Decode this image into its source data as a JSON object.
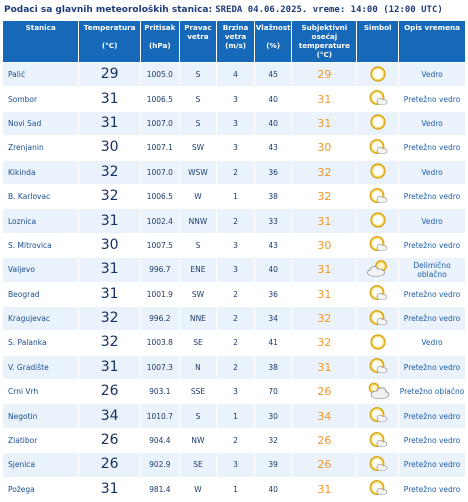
{
  "header": {
    "title_prefix": "Podaci sa glavnih meteoroloških stanica:",
    "title_mono": "SREDA 04.06.2025.  vreme: 14:00 (12:00 UTC)"
  },
  "columns": {
    "station": "Stanica",
    "temperature": "Temperatura",
    "temperature_unit": "(°C)",
    "pressure": "Pritisak",
    "pressure_unit": "(hPa)",
    "wind_dir": "Pravac vetra",
    "wind_speed": "Brzina vetra",
    "wind_speed_unit": "(m/s)",
    "humidity": "Vlažnost",
    "humidity_unit": "(%)",
    "feels_like": "Subjektivni osećaj temperature",
    "feels_like_unit": "(°C)",
    "symbol": "Simbol",
    "description": "Opis vremena"
  },
  "rows": [
    {
      "station": "Palić",
      "temp": "29",
      "pressure": "1005.0",
      "dir": "S",
      "speed": "4",
      "humidity": "45",
      "feel": "29",
      "desc": "Vedro",
      "icon": "sun-icon"
    },
    {
      "station": "Sombor",
      "temp": "31",
      "pressure": "1006.5",
      "dir": "S",
      "speed": "3",
      "humidity": "40",
      "feel": "31",
      "desc": "Pretežno vedro",
      "icon": "sun-cloud-icon"
    },
    {
      "station": "Novi Sad",
      "temp": "31",
      "pressure": "1007.0",
      "dir": "S",
      "speed": "3",
      "humidity": "40",
      "feel": "31",
      "desc": "Vedro",
      "icon": "sun-icon"
    },
    {
      "station": "Zrenjanin",
      "temp": "30",
      "pressure": "1007.1",
      "dir": "SW",
      "speed": "3",
      "humidity": "43",
      "feel": "30",
      "desc": "Pretežno vedro",
      "icon": "sun-cloud-icon"
    },
    {
      "station": "Kikinda",
      "temp": "32",
      "pressure": "1007.0",
      "dir": "WSW",
      "speed": "2",
      "humidity": "36",
      "feel": "32",
      "desc": "Vedro",
      "icon": "sun-icon"
    },
    {
      "station": "B. Karlovac",
      "temp": "32",
      "pressure": "1006.5",
      "dir": "W",
      "speed": "1",
      "humidity": "38",
      "feel": "32",
      "desc": "Pretežno vedro",
      "icon": "sun-cloud-icon"
    },
    {
      "station": "Loznica",
      "temp": "31",
      "pressure": "1002.4",
      "dir": "NNW",
      "speed": "2",
      "humidity": "33",
      "feel": "31",
      "desc": "Vedro",
      "icon": "sun-icon"
    },
    {
      "station": "S. Mitrovica",
      "temp": "30",
      "pressure": "1007.5",
      "dir": "S",
      "speed": "3",
      "humidity": "43",
      "feel": "30",
      "desc": "Pretežno vedro",
      "icon": "sun-cloud-icon"
    },
    {
      "station": "Valjevo",
      "temp": "31",
      "pressure": "996.7",
      "dir": "ENE",
      "speed": "3",
      "humidity": "40",
      "feel": "31",
      "desc": "Delimično oblačno",
      "icon": "partly-cloudy-icon"
    },
    {
      "station": "Beograd",
      "temp": "31",
      "pressure": "1001.9",
      "dir": "SW",
      "speed": "2",
      "humidity": "36",
      "feel": "31",
      "desc": "Pretežno vedro",
      "icon": "sun-cloud-icon"
    },
    {
      "station": "Kragujevac",
      "temp": "32",
      "pressure": "996.2",
      "dir": "NNE",
      "speed": "2",
      "humidity": "34",
      "feel": "32",
      "desc": "Pretežno vedro",
      "icon": "sun-cloud-icon"
    },
    {
      "station": "S. Palanka",
      "temp": "32",
      "pressure": "1003.8",
      "dir": "SE",
      "speed": "2",
      "humidity": "41",
      "feel": "32",
      "desc": "Vedro",
      "icon": "sun-icon"
    },
    {
      "station": "V. Gradište",
      "temp": "31",
      "pressure": "1007.3",
      "dir": "N",
      "speed": "2",
      "humidity": "38",
      "feel": "31",
      "desc": "Pretežno vedro",
      "icon": "sun-cloud-icon"
    },
    {
      "station": "Crni Vrh",
      "temp": "26",
      "pressure": "903.1",
      "dir": "SSE",
      "speed": "3",
      "humidity": "70",
      "feel": "26",
      "desc": "Pretežno oblačno",
      "icon": "mostly-cloudy-icon"
    },
    {
      "station": "Negotin",
      "temp": "34",
      "pressure": "1010.7",
      "dir": "S",
      "speed": "1",
      "humidity": "30",
      "feel": "34",
      "desc": "Pretežno vedro",
      "icon": "sun-cloud-icon"
    },
    {
      "station": "Zlatibor",
      "temp": "26",
      "pressure": "904.4",
      "dir": "NW",
      "speed": "2",
      "humidity": "32",
      "feel": "26",
      "desc": "Pretežno vedro",
      "icon": "sun-cloud-icon"
    },
    {
      "station": "Sjenica",
      "temp": "26",
      "pressure": "902.9",
      "dir": "SE",
      "speed": "3",
      "humidity": "39",
      "feel": "26",
      "desc": "Pretežno vedro",
      "icon": "sun-cloud-icon"
    },
    {
      "station": "Požega",
      "temp": "31",
      "pressure": "981.4",
      "dir": "W",
      "speed": "1",
      "humidity": "40",
      "feel": "31",
      "desc": "Pretežno vedro",
      "icon": "sun-cloud-icon"
    }
  ],
  "colors": {
    "header_bg": "#1668b8",
    "row_alt_bg": "#eaf3fb",
    "feels_like_text": "#f0962a",
    "title_text": "#1f3c7a"
  }
}
